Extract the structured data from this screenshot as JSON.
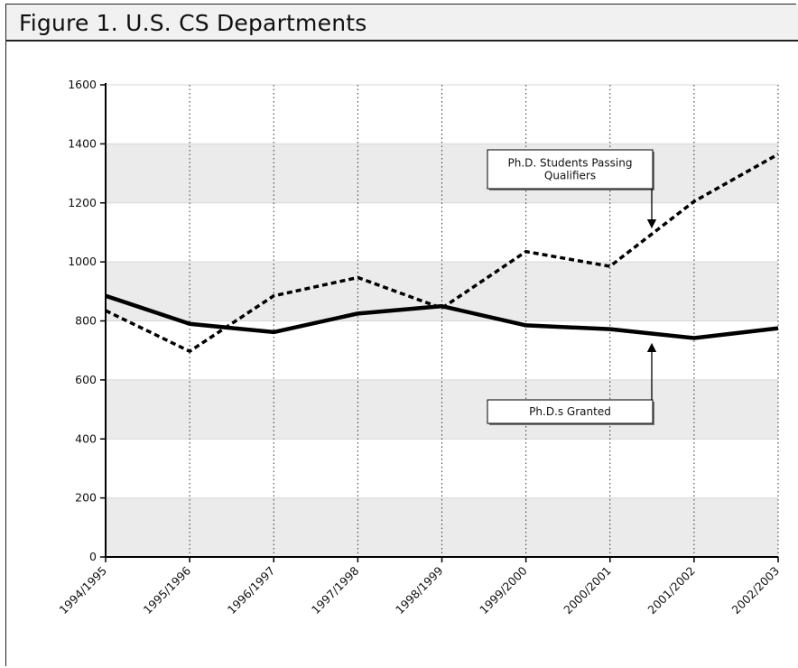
{
  "header": {
    "title": "Figure 1. U.S. CS Departments"
  },
  "chart_data": {
    "type": "line",
    "title": "Figure 1. U.S. CS Departments",
    "xlabel": "",
    "ylabel": "",
    "categories": [
      "1994/1995",
      "1995/1996",
      "1996/1997",
      "1997/1998",
      "1998/1999",
      "1999/2000",
      "2000/2001",
      "2001/2002",
      "2002/2003"
    ],
    "ylim": [
      0,
      1600
    ],
    "yticks": [
      "0",
      "200",
      "400",
      "600",
      "800",
      "1000",
      "1200",
      "1400",
      "1600"
    ],
    "grid": "alternating horizontal bands, dotted vertical lines",
    "series": [
      {
        "name": "Ph.D.s Granted",
        "style": "solid",
        "color": "#000000",
        "values": [
          885,
          790,
          762,
          825,
          850,
          785,
          772,
          742,
          775
        ]
      },
      {
        "name": "Ph.D. Students Passing Qualifiers",
        "style": "dashed",
        "color": "#000000",
        "values": [
          835,
          697,
          885,
          947,
          843,
          1035,
          985,
          1205,
          1365
        ]
      }
    ],
    "annotations": [
      {
        "lines": [
          "Ph.D. Students Passing",
          "Qualifiers"
        ],
        "points_to": "Ph.D. Students Passing Qualifiers"
      },
      {
        "lines": [
          "Ph.D.s Granted"
        ],
        "points_to": "Ph.D.s Granted"
      }
    ],
    "colors": {
      "band": "#ebebeb",
      "background": "#ffffff",
      "line": "#000000"
    }
  }
}
